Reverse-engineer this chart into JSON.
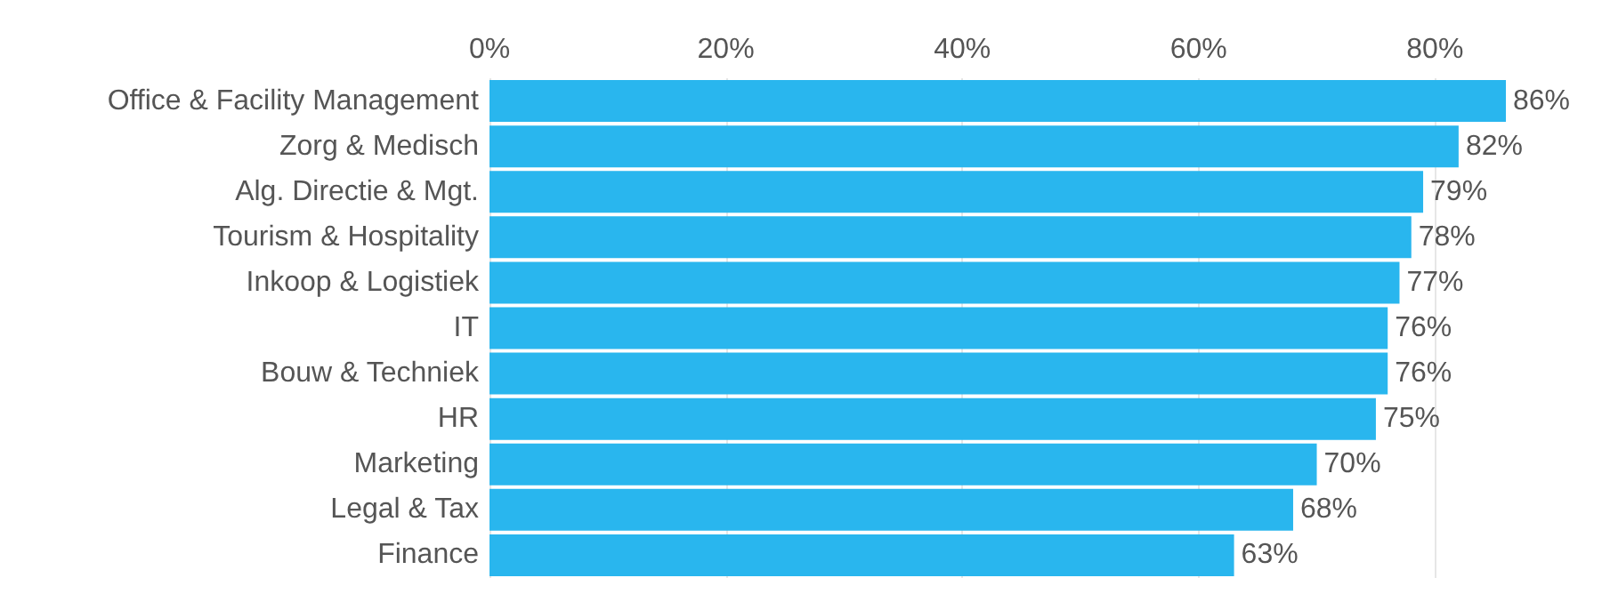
{
  "chart_data": {
    "type": "bar",
    "orientation": "horizontal",
    "categories": [
      "Office & Facility Management",
      "Zorg & Medisch",
      "Alg. Directie & Mgt.",
      "Tourism & Hospitality",
      "Inkoop & Logistiek",
      "IT",
      "Bouw & Techniek",
      "HR",
      "Marketing",
      "Legal & Tax",
      "Finance"
    ],
    "values": [
      86,
      82,
      79,
      78,
      77,
      76,
      76,
      75,
      70,
      68,
      63
    ],
    "value_labels": [
      "86%",
      "82%",
      "79%",
      "78%",
      "77%",
      "76%",
      "76%",
      "75%",
      "70%",
      "68%",
      "63%"
    ],
    "color": "#29b6ee",
    "xlim": [
      0,
      86
    ],
    "xticks": [
      {
        "value": 0,
        "label": "0%"
      },
      {
        "value": 20,
        "label": "20%"
      },
      {
        "value": 40,
        "label": "40%"
      },
      {
        "value": 60,
        "label": "60%"
      },
      {
        "value": 80,
        "label": "80%"
      }
    ],
    "grid": "x"
  }
}
